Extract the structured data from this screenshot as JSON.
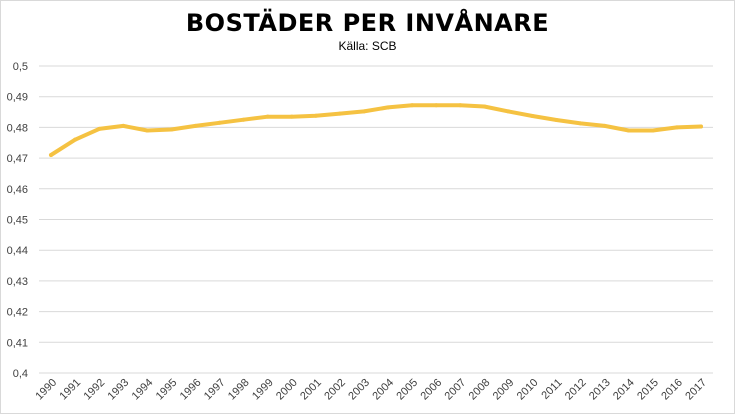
{
  "chart_data": {
    "type": "line",
    "title": "BOSTÄDER PER INVÅNARE",
    "subtitle": "Källa: SCB",
    "xlabel": "",
    "ylabel": "",
    "ylim": [
      0.4,
      0.5
    ],
    "yticks": [
      "0,4",
      "0,41",
      "0,42",
      "0,43",
      "0,44",
      "0,45",
      "0,46",
      "0,47",
      "0,48",
      "0,49",
      "0,5"
    ],
    "grid": true,
    "categories": [
      "1990",
      "1991",
      "1992",
      "1993",
      "1994",
      "1995",
      "1996",
      "1997",
      "1998",
      "1999",
      "2000",
      "2001",
      "2002",
      "2003",
      "2004",
      "2005",
      "2006",
      "2007",
      "2008",
      "2009",
      "2010",
      "2011",
      "2012",
      "2013",
      "2014",
      "2015",
      "2016",
      "2017"
    ],
    "series": [
      {
        "color": "#f5c242",
        "values": [
          0.471,
          0.476,
          0.4795,
          0.4805,
          0.479,
          0.4793,
          0.4805,
          0.4815,
          0.4825,
          0.4835,
          0.4835,
          0.4838,
          0.4845,
          0.4852,
          0.4865,
          0.4872,
          0.4872,
          0.4872,
          0.4868,
          0.4852,
          0.4837,
          0.4824,
          0.4813,
          0.4805,
          0.479,
          0.479,
          0.48,
          0.4803
        ]
      }
    ]
  }
}
